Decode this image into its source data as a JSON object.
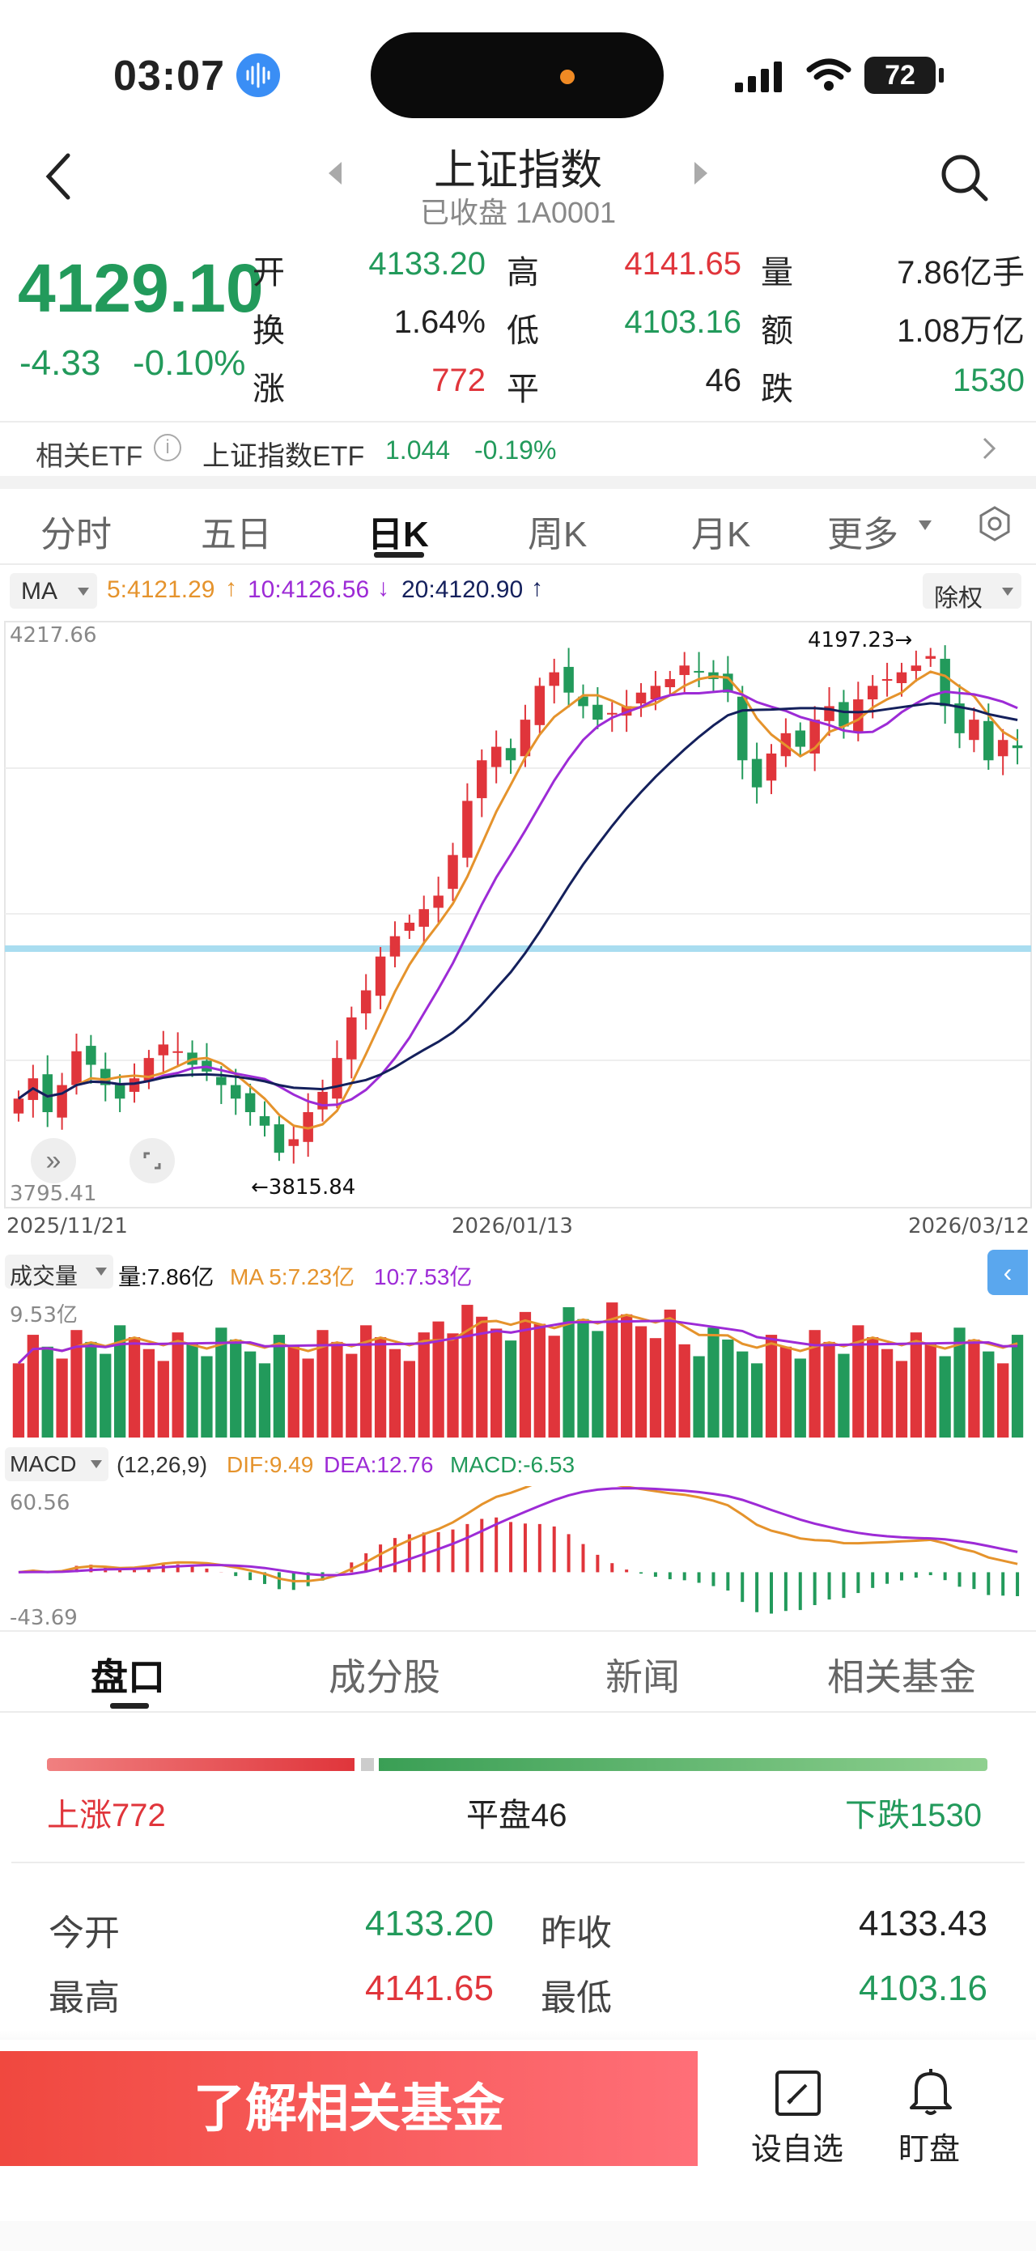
{
  "status_bar": {
    "time": "03:07",
    "battery": "72"
  },
  "header": {
    "title": "上证指数",
    "subtitle": "已收盘 1A0001"
  },
  "quote": {
    "price": "4129.10",
    "change": "-4.33",
    "change_pct": "-0.10%",
    "open_label": "开",
    "open": "4133.20",
    "high_label": "高",
    "high": "4141.65",
    "vol_label": "量",
    "vol": "7.86亿手",
    "turnover_label": "换",
    "turnover": "1.64%",
    "low_label": "低",
    "low": "4103.16",
    "amount_label": "额",
    "amount": "1.08万亿",
    "up_label": "涨",
    "up": "772",
    "flat_label": "平",
    "flat": "46",
    "down_label": "跌",
    "down": "1530"
  },
  "etf": {
    "label": "相关ETF",
    "name": "上证指数ETF",
    "price": "1.044",
    "pct": "-0.19%"
  },
  "period_tabs": [
    "分时",
    "五日",
    "日K",
    "周K",
    "月K",
    "更多"
  ],
  "ma_legend": {
    "label": "MA",
    "ma5": "5:4121.29",
    "ma10": "10:4126.56",
    "ma20": "20:4120.90",
    "adj": "除权"
  },
  "kline": {
    "y_top": "4217.66",
    "y_bottom": "3795.41",
    "high_mark": "4197.23",
    "low_mark": "3815.84",
    "dates": [
      "2025/11/21",
      "2026/01/13",
      "2026/03/12"
    ]
  },
  "volume": {
    "label": "成交量",
    "vol": "量:7.86亿",
    "ma5": "MA 5:7.23亿",
    "ma10": "10:7.53亿",
    "y_top": "9.53亿"
  },
  "macd": {
    "label": "MACD",
    "params": "(12,26,9)",
    "dif": "DIF:9.49",
    "dea": "DEA:12.76",
    "macd": "MACD:-6.53",
    "y_top": "60.56",
    "y_bottom": "-43.69"
  },
  "section_tabs": [
    "盘口",
    "成分股",
    "新闻",
    "相关基金"
  ],
  "breadth": {
    "up": "上涨772",
    "flat": "平盘46",
    "down": "下跌1530"
  },
  "stats": [
    {
      "label": "今开",
      "value": "4133.20"
    },
    {
      "label": "昨收",
      "value": "4133.43"
    },
    {
      "label": "最高",
      "value": "4141.65"
    },
    {
      "label": "最低",
      "value": "4103.16"
    }
  ],
  "bottom": {
    "cta": "了解相关基金",
    "watch": "设自选",
    "alert": "盯盘"
  },
  "chart_data": {
    "type": "candlestick",
    "title": "上证指数 日K",
    "x_start": "2025/11/21",
    "x_mid": "2026/01/13",
    "x_end": "2026/03/12",
    "ylim": [
      3795.41,
      4217.66
    ],
    "series_close": [
      3870,
      3885,
      3860,
      3880,
      3905,
      3895,
      3880,
      3870,
      3885,
      3900,
      3910,
      3905,
      3895,
      3890,
      3880,
      3870,
      3860,
      3850,
      3830,
      3840,
      3860,
      3875,
      3900,
      3930,
      3950,
      3975,
      3990,
      4000,
      4010,
      4020,
      4050,
      4090,
      4120,
      4130,
      4120,
      4150,
      4175,
      4185,
      4170,
      4160,
      4150,
      4155,
      4160,
      4170,
      4175,
      4180,
      4190,
      4185,
      4180,
      4170,
      4120,
      4100,
      4125,
      4140,
      4130,
      4150,
      4160,
      4145,
      4165,
      4175,
      4180,
      4185,
      4190,
      4197,
      4160,
      4140,
      4150,
      4120,
      4135,
      4129
    ]
  }
}
